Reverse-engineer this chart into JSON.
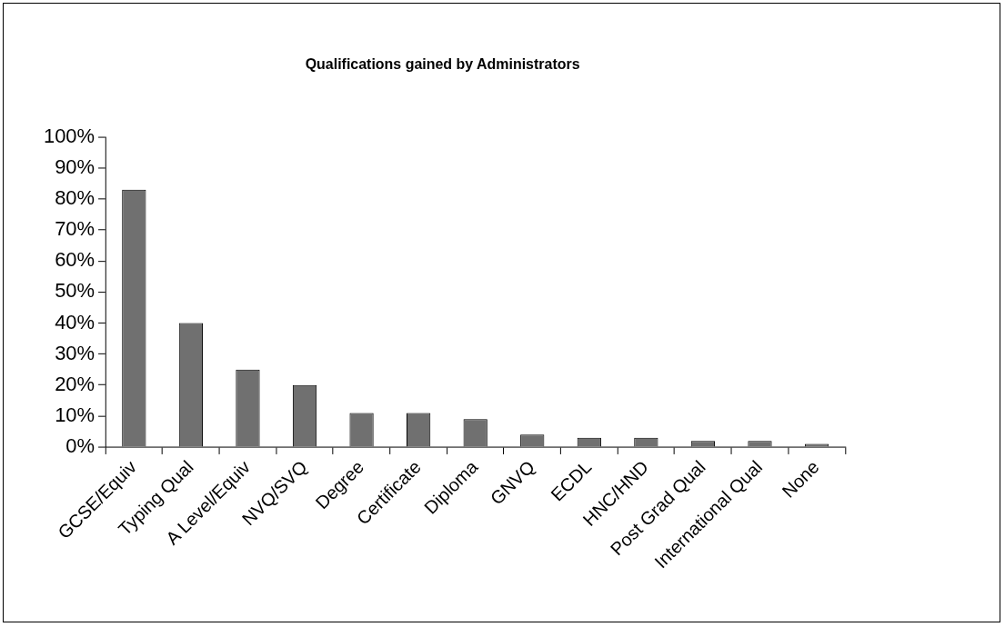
{
  "chart_data": {
    "type": "bar",
    "title": "Qualifications gained by Administrators",
    "categories": [
      "GCSE/Equiv",
      "Typing Qual",
      "A Level/Equiv",
      "NVQ/SVQ",
      "Degree",
      "Certificate",
      "Diploma",
      "GNVQ",
      "ECDL",
      "HNC/HND",
      "Post Grad Qual",
      "International Qual",
      "None"
    ],
    "values": [
      83,
      40,
      25,
      20,
      11,
      11,
      9,
      4,
      3,
      3,
      2,
      2,
      1
    ],
    "color": "#707070",
    "ylim": [
      0,
      100
    ],
    "yticks": [
      {
        "value": 0,
        "label": "0%"
      },
      {
        "value": 10,
        "label": "10%"
      },
      {
        "value": 20,
        "label": "20%"
      },
      {
        "value": 30,
        "label": "30%"
      },
      {
        "value": 40,
        "label": "40%"
      },
      {
        "value": 50,
        "label": "50%"
      },
      {
        "value": 60,
        "label": "60%"
      },
      {
        "value": 70,
        "label": "70%"
      },
      {
        "value": 80,
        "label": "80%"
      },
      {
        "value": 90,
        "label": "90%"
      },
      {
        "value": 100,
        "label": "100%"
      }
    ],
    "grid": false,
    "legend": false
  }
}
